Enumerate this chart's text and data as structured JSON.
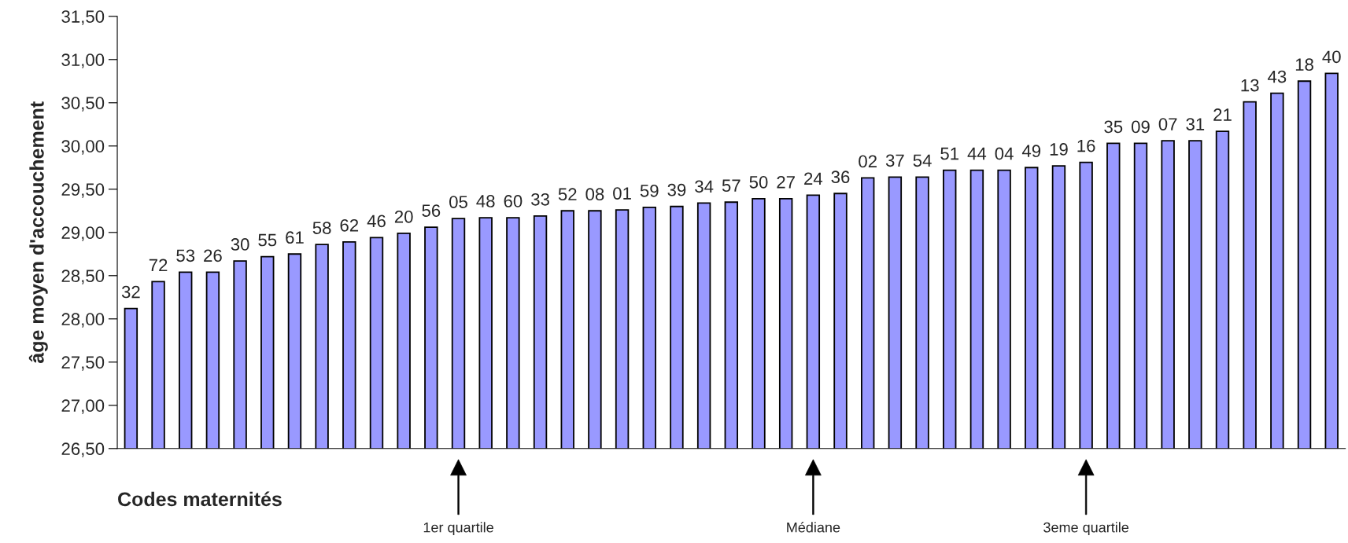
{
  "chart_data": {
    "type": "bar",
    "ylabel": "âge moyen d'accouchement",
    "xlabel": "Codes maternités",
    "categories": [
      "32",
      "72",
      "53",
      "26",
      "30",
      "55",
      "61",
      "58",
      "62",
      "46",
      "20",
      "56",
      "05",
      "48",
      "60",
      "33",
      "52",
      "08",
      "01",
      "59",
      "39",
      "34",
      "57",
      "50",
      "27",
      "24",
      "36",
      "02",
      "37",
      "54",
      "51",
      "44",
      "04",
      "49",
      "19",
      "16",
      "35",
      "09",
      "07",
      "31",
      "21",
      "13",
      "43",
      "18",
      "40"
    ],
    "values": [
      28.12,
      28.43,
      28.54,
      28.54,
      28.67,
      28.72,
      28.75,
      28.86,
      28.89,
      28.94,
      28.99,
      29.06,
      29.16,
      29.17,
      29.17,
      29.19,
      29.25,
      29.25,
      29.26,
      29.29,
      29.3,
      29.34,
      29.35,
      29.39,
      29.39,
      29.43,
      29.45,
      29.63,
      29.64,
      29.64,
      29.72,
      29.72,
      29.72,
      29.75,
      29.77,
      29.81,
      30.03,
      30.03,
      30.06,
      30.06,
      30.17,
      30.51,
      30.61,
      30.75,
      30.84
    ],
    "color": "#9999ff",
    "ylim": [
      26.5,
      31.5
    ],
    "yticks": [
      {
        "value": 26.5,
        "label": "26,50"
      },
      {
        "value": 27.0,
        "label": "27,00"
      },
      {
        "value": 27.5,
        "label": "27,50"
      },
      {
        "value": 28.0,
        "label": "28,00"
      },
      {
        "value": 28.5,
        "label": "28,50"
      },
      {
        "value": 29.0,
        "label": "29,00"
      },
      {
        "value": 29.5,
        "label": "29,50"
      },
      {
        "value": 30.0,
        "label": "30,00"
      },
      {
        "value": 30.5,
        "label": "30,50"
      },
      {
        "value": 31.0,
        "label": "31,00"
      },
      {
        "value": 31.5,
        "label": "31,50"
      }
    ],
    "annotations": [
      "1er quartile",
      "Médiane",
      "3eme quartile"
    ],
    "grid": false,
    "legend": false
  }
}
